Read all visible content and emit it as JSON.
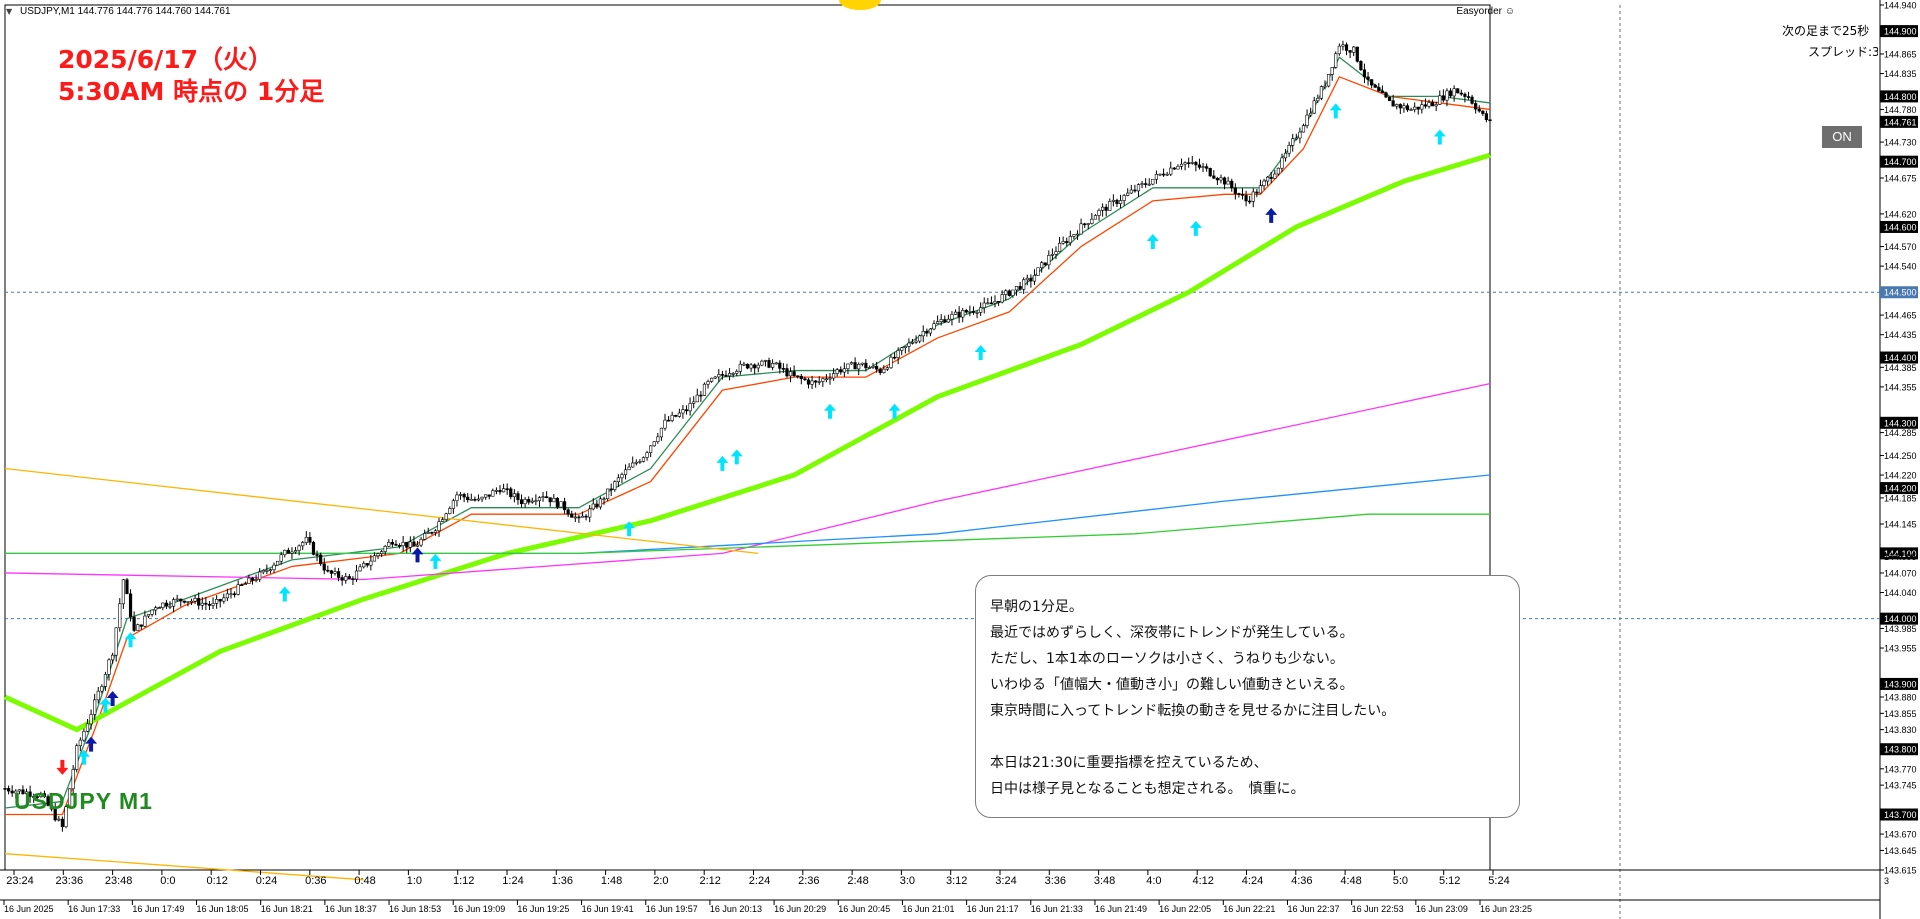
{
  "header": {
    "symbol_info": "USDJPY,M1  144.776 144.776 144.760 144.761",
    "easyorder": "Easyorder ☺",
    "next_bar": "次の足まで25秒",
    "spread": "スプレッド:3",
    "on_button": "ON"
  },
  "annotation": {
    "title_line1": "2025/6/17（火）",
    "title_line2": "5:30AM 時点の 1分足",
    "symbol_label": "USDJPY M1"
  },
  "comment": {
    "lines": [
      "早朝の1分足。",
      "最近ではめずらしく、深夜帯にトレンドが発生している。",
      "ただし、1本1本のローソクは小さく、うねりも少ない。",
      "いわゆる「値幅大・値動き小」の難しい値動きといえる。",
      "東京時間に入ってトレンド転換の動きを見せるかに注目したい。",
      "",
      "本日は21:30に重要指標を控えているため、",
      "日中は様子見となることも想定される。　慎重に。"
    ]
  },
  "chart_data": {
    "type": "candlestick",
    "symbol": "USDJPY",
    "timeframe": "M1",
    "y_range": [
      143.615,
      144.94
    ],
    "y_ticks": [
      144.94,
      144.9,
      144.865,
      144.835,
      144.8,
      144.78,
      144.761,
      144.73,
      144.7,
      144.675,
      144.62,
      144.6,
      144.57,
      144.54,
      144.5,
      144.465,
      144.435,
      144.4,
      144.385,
      144.355,
      144.3,
      144.285,
      144.25,
      144.22,
      144.2,
      144.185,
      144.145,
      144.1,
      144.095,
      144.07,
      144.04,
      144.0,
      143.985,
      143.955,
      143.9,
      143.88,
      143.855,
      143.83,
      143.8,
      143.77,
      143.745,
      143.7,
      143.67,
      143.645,
      143.615
    ],
    "y_tick_labels": [
      "144.940",
      "144.900",
      "144.865",
      "144.835",
      "144.800",
      "144.780",
      "144.761",
      "144.730",
      "144.700",
      "144.675",
      "144.620",
      "144.600",
      "144.570",
      "144.540",
      "144.500",
      "144.465",
      "144.435",
      "144.400",
      "144.385",
      "144.355",
      "144.300",
      "144.285",
      "144.250",
      "144.220",
      "144.200",
      "144.185",
      "144.145",
      "144.100",
      "144.095",
      "144.070",
      "144.040",
      "144.000",
      "143.985",
      "143.955",
      "143.900",
      "143.880",
      "143.855",
      "143.830",
      "143.800",
      "143.770",
      "143.745",
      "143.700",
      "143.670",
      "143.645",
      "143.615"
    ],
    "highlighted_price_labels": [
      "144.900",
      "144.800",
      "144.761",
      "144.700",
      "144.600",
      "144.400",
      "144.300",
      "144.200",
      "144.100",
      "144.000",
      "143.900",
      "143.800",
      "143.700"
    ],
    "current_price": 144.761,
    "horizontal_lines": [
      144.5,
      144.0
    ],
    "x_top_labels": [
      "23:24",
      "23:36",
      "23:48",
      "0:0",
      "0:12",
      "0:24",
      "0:36",
      "0:48",
      "1:0",
      "1:12",
      "1:24",
      "1:36",
      "1:48",
      "2:0",
      "2:12",
      "2:24",
      "2:36",
      "2:48",
      "3:0",
      "3:12",
      "3:24",
      "3:36",
      "3:48",
      "4:0",
      "4:12",
      "4:24",
      "4:36",
      "4:48",
      "5:0",
      "5:12",
      "5:24"
    ],
    "x_bottom_labels": [
      "16 Jun 2025",
      "16 Jun 17:33",
      "16 Jun 17:49",
      "16 Jun 18:05",
      "16 Jun 18:21",
      "16 Jun 18:37",
      "16 Jun 18:53",
      "16 Jun 19:09",
      "16 Jun 19:25",
      "16 Jun 19:41",
      "16 Jun 19:57",
      "16 Jun 20:13",
      "16 Jun 20:29",
      "16 Jun 20:45",
      "16 Jun 21:01",
      "16 Jun 21:17",
      "16 Jun 21:33",
      "16 Jun 21:49",
      "16 Jun 22:05",
      "16 Jun 22:21",
      "16 Jun 22:37",
      "16 Jun 22:53",
      "16 Jun 23:09",
      "16 Jun 23:25"
    ],
    "right_scale_small": "3",
    "price_path": [
      [
        0,
        143.74
      ],
      [
        10,
        143.73
      ],
      [
        16,
        143.68
      ],
      [
        20,
        143.8
      ],
      [
        25,
        143.87
      ],
      [
        30,
        143.95
      ],
      [
        33,
        144.06
      ],
      [
        36,
        143.98
      ],
      [
        42,
        144.02
      ],
      [
        50,
        144.03
      ],
      [
        58,
        144.02
      ],
      [
        66,
        144.05
      ],
      [
        72,
        144.07
      ],
      [
        78,
        144.1
      ],
      [
        84,
        144.12
      ],
      [
        90,
        144.07
      ],
      [
        96,
        144.06
      ],
      [
        102,
        144.09
      ],
      [
        108,
        144.12
      ],
      [
        114,
        144.11
      ],
      [
        120,
        144.14
      ],
      [
        126,
        144.19
      ],
      [
        132,
        144.18
      ],
      [
        138,
        144.2
      ],
      [
        144,
        144.18
      ],
      [
        150,
        144.19
      ],
      [
        156,
        144.17
      ],
      [
        160,
        144.15
      ],
      [
        166,
        144.18
      ],
      [
        172,
        144.22
      ],
      [
        178,
        144.25
      ],
      [
        184,
        144.3
      ],
      [
        190,
        144.32
      ],
      [
        196,
        144.36
      ],
      [
        202,
        144.38
      ],
      [
        208,
        144.39
      ],
      [
        214,
        144.39
      ],
      [
        220,
        144.37
      ],
      [
        226,
        144.36
      ],
      [
        232,
        144.38
      ],
      [
        238,
        144.39
      ],
      [
        244,
        144.38
      ],
      [
        250,
        144.41
      ],
      [
        256,
        144.44
      ],
      [
        262,
        144.46
      ],
      [
        268,
        144.47
      ],
      [
        274,
        144.48
      ],
      [
        280,
        144.5
      ],
      [
        286,
        144.52
      ],
      [
        292,
        144.56
      ],
      [
        298,
        144.59
      ],
      [
        304,
        144.62
      ],
      [
        310,
        144.64
      ],
      [
        316,
        144.66
      ],
      [
        322,
        144.68
      ],
      [
        328,
        144.7
      ],
      [
        334,
        144.69
      ],
      [
        340,
        144.67
      ],
      [
        346,
        144.64
      ],
      [
        350,
        144.66
      ],
      [
        356,
        144.7
      ],
      [
        362,
        144.76
      ],
      [
        368,
        144.82
      ],
      [
        372,
        144.88
      ],
      [
        376,
        144.87
      ],
      [
        380,
        144.82
      ],
      [
        386,
        144.79
      ],
      [
        392,
        144.78
      ],
      [
        398,
        144.79
      ],
      [
        404,
        144.81
      ],
      [
        408,
        144.8
      ],
      [
        412,
        144.77
      ],
      [
        414,
        144.76
      ]
    ],
    "series": [
      {
        "name": "",
        "color": "#ff4500",
        "values": [
          [
            0,
            143.7
          ],
          [
            16,
            143.7
          ],
          [
            25,
            143.83
          ],
          [
            34,
            143.97
          ],
          [
            50,
            144.02
          ],
          [
            80,
            144.08
          ],
          [
            110,
            144.1
          ],
          [
            130,
            144.16
          ],
          [
            160,
            144.16
          ],
          [
            180,
            144.21
          ],
          [
            200,
            144.35
          ],
          [
            220,
            144.37
          ],
          [
            240,
            144.37
          ],
          [
            260,
            144.43
          ],
          [
            280,
            144.47
          ],
          [
            300,
            144.57
          ],
          [
            320,
            144.64
          ],
          [
            340,
            144.65
          ],
          [
            350,
            144.65
          ],
          [
            362,
            144.72
          ],
          [
            372,
            144.83
          ],
          [
            386,
            144.8
          ],
          [
            400,
            144.79
          ],
          [
            414,
            144.78
          ]
        ]
      },
      {
        "name": "",
        "color": "#2e8b57",
        "values": [
          [
            0,
            143.71
          ],
          [
            16,
            143.72
          ],
          [
            25,
            143.85
          ],
          [
            34,
            144.0
          ],
          [
            50,
            144.03
          ],
          [
            80,
            144.09
          ],
          [
            110,
            144.11
          ],
          [
            130,
            144.17
          ],
          [
            160,
            144.17
          ],
          [
            180,
            144.23
          ],
          [
            200,
            144.37
          ],
          [
            220,
            144.38
          ],
          [
            240,
            144.38
          ],
          [
            260,
            144.45
          ],
          [
            280,
            144.49
          ],
          [
            300,
            144.59
          ],
          [
            320,
            144.66
          ],
          [
            340,
            144.66
          ],
          [
            350,
            144.66
          ],
          [
            362,
            144.75
          ],
          [
            372,
            144.86
          ],
          [
            386,
            144.8
          ],
          [
            400,
            144.8
          ],
          [
            414,
            144.79
          ]
        ]
      },
      {
        "name": "",
        "color": "#7cfc00",
        "values": [
          [
            0,
            143.88
          ],
          [
            20,
            143.83
          ],
          [
            30,
            143.86
          ],
          [
            60,
            143.95
          ],
          [
            100,
            144.03
          ],
          [
            140,
            144.1
          ],
          [
            180,
            144.15
          ],
          [
            220,
            144.22
          ],
          [
            260,
            144.34
          ],
          [
            300,
            144.42
          ],
          [
            330,
            144.5
          ],
          [
            360,
            144.6
          ],
          [
            390,
            144.67
          ],
          [
            414,
            144.71
          ]
        ]
      },
      {
        "name": "",
        "color": "#ff33ff",
        "values": [
          [
            0,
            144.07
          ],
          [
            100,
            144.06
          ],
          [
            200,
            144.1
          ],
          [
            260,
            144.18
          ],
          [
            320,
            144.25
          ],
          [
            414,
            144.36
          ]
        ]
      },
      {
        "name": "",
        "color": "#1e90ff",
        "values": [
          [
            0,
            144.1
          ],
          [
            160,
            144.1
          ],
          [
            260,
            144.13
          ],
          [
            340,
            144.18
          ],
          [
            414,
            144.22
          ]
        ]
      },
      {
        "name": "",
        "color": "#32cd32",
        "values": [
          [
            0,
            144.1
          ],
          [
            160,
            144.1
          ],
          [
            315,
            144.13
          ],
          [
            380,
            144.16
          ],
          [
            414,
            144.16
          ]
        ]
      },
      {
        "name": "",
        "color": "#ffb400",
        "values": [
          [
            0,
            144.23
          ],
          [
            210,
            144.1
          ]
        ]
      },
      {
        "name": "",
        "color": "#ffb400",
        "values": [
          [
            0,
            143.64
          ],
          [
            100,
            143.6
          ]
        ]
      }
    ],
    "buy_signals": [
      [
        22,
        143.81
      ],
      [
        28,
        143.89
      ],
      [
        35,
        143.99
      ],
      [
        78,
        144.06
      ],
      [
        120,
        144.11
      ],
      [
        174,
        144.16
      ],
      [
        200,
        144.26
      ],
      [
        204,
        144.27
      ],
      [
        230,
        144.34
      ],
      [
        248,
        144.34
      ],
      [
        272,
        144.43
      ],
      [
        320,
        144.6
      ],
      [
        332,
        144.62
      ],
      [
        371,
        144.8
      ],
      [
        400,
        144.76
      ]
    ],
    "strong_signals": [
      [
        24,
        143.83
      ],
      [
        30,
        143.9
      ],
      [
        115,
        144.12
      ],
      [
        353,
        144.64
      ]
    ],
    "sell_signals": [
      [
        16,
        143.75
      ]
    ]
  }
}
